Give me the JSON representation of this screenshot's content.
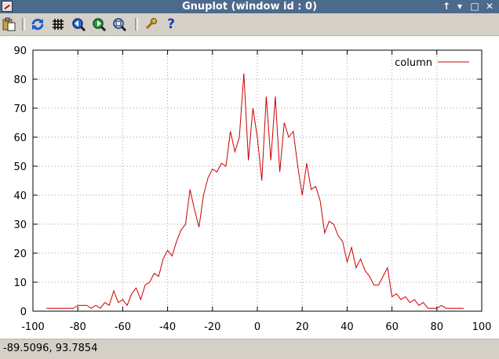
{
  "window": {
    "title": "Gnuplot (window id : 0)",
    "buttons": [
      "↑",
      "▾",
      "□",
      "✕"
    ]
  },
  "toolbar": {
    "icons": [
      "copy-to-clipboard-icon",
      "replot-icon",
      "grid-icon",
      "zoom-previous-icon",
      "zoom-next-icon",
      "autoscale-icon",
      "options-icon",
      "help-icon"
    ],
    "help_glyph": "?"
  },
  "status": {
    "coordinates": "-89.5096,  93.7854"
  },
  "colors": {
    "series": "#cc0000",
    "grid": "#a0a0a0",
    "titlebar": "#4c6a8c"
  },
  "chart_data": {
    "type": "line",
    "title": "",
    "xlabel": "",
    "ylabel": "",
    "xlim": [
      -100,
      100
    ],
    "ylim": [
      0,
      90
    ],
    "xticks": [
      "-100",
      "-80",
      "-60",
      "-40",
      "-20",
      "0",
      "20",
      "40",
      "60",
      "80",
      "100"
    ],
    "yticks": [
      "0",
      "10",
      "20",
      "30",
      "40",
      "50",
      "60",
      "70",
      "80",
      "90"
    ],
    "grid": true,
    "legend": "top-right",
    "series": [
      {
        "name": "column",
        "x": [
          -94,
          -92,
          -90,
          -88,
          -86,
          -84,
          -82,
          -80,
          -78,
          -76,
          -74,
          -72,
          -70,
          -68,
          -66,
          -64,
          -62,
          -60,
          -58,
          -56,
          -54,
          -52,
          -50,
          -48,
          -46,
          -44,
          -42,
          -40,
          -38,
          -36,
          -34,
          -32,
          -30,
          -28,
          -26,
          -24,
          -22,
          -20,
          -18,
          -16,
          -14,
          -12,
          -10,
          -8,
          -6,
          -4,
          -2,
          0,
          2,
          4,
          6,
          8,
          10,
          12,
          14,
          16,
          18,
          20,
          22,
          24,
          26,
          28,
          30,
          32,
          34,
          36,
          38,
          40,
          42,
          44,
          46,
          48,
          50,
          52,
          54,
          56,
          58,
          60,
          62,
          64,
          66,
          68,
          70,
          72,
          74,
          76,
          78,
          80,
          82,
          84,
          86,
          88,
          90,
          92
        ],
        "y": [
          1,
          1,
          1,
          1,
          1,
          1,
          1,
          2,
          2,
          2,
          1,
          2,
          1,
          3,
          2,
          7,
          3,
          4,
          2,
          6,
          8,
          4,
          9,
          10,
          13,
          12,
          18,
          21,
          19,
          24,
          28,
          30,
          42,
          35,
          29,
          40,
          46,
          49,
          48,
          51,
          50,
          62,
          55,
          60,
          82,
          52,
          70,
          60,
          45,
          74,
          52,
          74,
          48,
          65,
          60,
          62,
          50,
          40,
          51,
          42,
          43,
          38,
          27,
          31,
          30,
          26,
          24,
          17,
          22,
          15,
          18,
          14,
          12,
          9,
          9,
          12,
          15,
          5,
          6,
          4,
          5,
          3,
          4,
          2,
          3,
          1,
          1,
          1,
          2,
          1,
          1,
          1,
          1,
          1
        ]
      }
    ]
  }
}
